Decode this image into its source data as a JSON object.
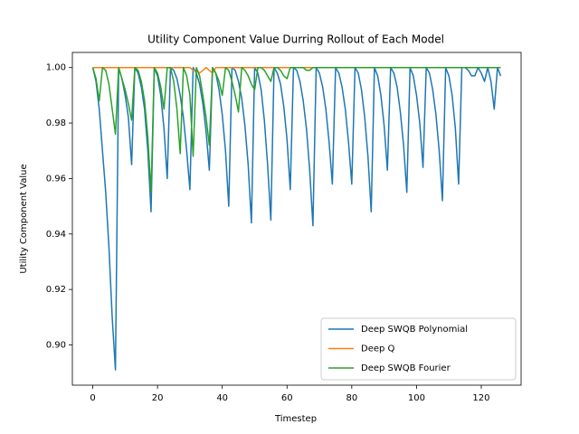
{
  "chart_data": {
    "type": "line",
    "title": "Utility Component Value Durring Rollout of Each Model",
    "xlabel": "Timestep",
    "ylabel": "Utility Component Value",
    "x": [
      0,
      1,
      2,
      3,
      4,
      5,
      6,
      7,
      8,
      9,
      10,
      11,
      12,
      13,
      14,
      15,
      16,
      17,
      18,
      19,
      20,
      21,
      22,
      23,
      24,
      25,
      26,
      27,
      28,
      29,
      30,
      31,
      32,
      33,
      34,
      35,
      36,
      37,
      38,
      39,
      40,
      41,
      42,
      43,
      44,
      45,
      46,
      47,
      48,
      49,
      50,
      51,
      52,
      53,
      54,
      55,
      56,
      57,
      58,
      59,
      60,
      61,
      62,
      63,
      64,
      65,
      66,
      67,
      68,
      69,
      70,
      71,
      72,
      73,
      74,
      75,
      76,
      77,
      78,
      79,
      80,
      81,
      82,
      83,
      84,
      85,
      86,
      87,
      88,
      89,
      90,
      91,
      92,
      93,
      94,
      95,
      96,
      97,
      98,
      99,
      100,
      101,
      102,
      103,
      104,
      105,
      106,
      107,
      108,
      109,
      110,
      111,
      112,
      113,
      114,
      115,
      116,
      117,
      118,
      119,
      120,
      121,
      122,
      123,
      124,
      125,
      126
    ],
    "series": [
      {
        "name": "Deep SWQB Polynomial",
        "color": "#1f77b4",
        "values": [
          1.0,
          0.995,
          0.985,
          0.97,
          0.955,
          0.935,
          0.91,
          0.891,
          1.0,
          0.996,
          0.99,
          0.982,
          0.965,
          1.0,
          0.998,
          0.993,
          0.985,
          0.97,
          0.948,
          1.0,
          0.997,
          0.99,
          0.978,
          0.96,
          1.0,
          0.999,
          0.996,
          0.99,
          0.982,
          0.97,
          0.956,
          1.0,
          0.998,
          0.994,
          0.987,
          0.977,
          0.963,
          1.0,
          0.998,
          0.992,
          0.983,
          0.97,
          0.95,
          1.0,
          0.999,
          0.995,
          0.989,
          0.979,
          0.965,
          0.944,
          1.0,
          0.998,
          0.992,
          0.981,
          0.965,
          0.945,
          1.0,
          0.998,
          0.994,
          0.986,
          0.974,
          0.956,
          1.0,
          0.999,
          0.995,
          0.988,
          0.978,
          0.963,
          0.943,
          1.0,
          0.998,
          0.993,
          0.985,
          0.973,
          0.958,
          1.0,
          0.998,
          0.993,
          0.985,
          0.973,
          0.958,
          1.0,
          0.998,
          0.992,
          0.982,
          0.968,
          0.948,
          1.0,
          0.997,
          0.99,
          0.979,
          0.963,
          1.0,
          0.998,
          0.993,
          0.984,
          0.972,
          0.955,
          1.0,
          0.997,
          0.99,
          0.98,
          0.964,
          1.0,
          0.998,
          0.992,
          0.983,
          0.97,
          0.952,
          1.0,
          0.997,
          0.99,
          0.978,
          0.958,
          1.0,
          1.0,
          0.999,
          0.997,
          0.997,
          1.0,
          0.998,
          0.995,
          1.0,
          0.995,
          0.985,
          1.0,
          0.997
        ]
      },
      {
        "name": "Deep Q",
        "color": "#ff7f0e",
        "values": [
          1.0,
          1.0,
          1.0,
          1.0,
          1.0,
          1.0,
          1.0,
          1.0,
          1.0,
          1.0,
          1.0,
          1.0,
          1.0,
          1.0,
          1.0,
          1.0,
          1.0,
          1.0,
          1.0,
          1.0,
          1.0,
          1.0,
          1.0,
          1.0,
          1.0,
          1.0,
          1.0,
          1.0,
          1.0,
          1.0,
          1.0,
          0.999,
          0.999,
          0.998,
          0.999,
          1.0,
          0.999,
          0.998,
          1.0,
          1.0,
          1.0,
          1.0,
          1.0,
          1.0,
          1.0,
          1.0,
          1.0,
          1.0,
          1.0,
          1.0,
          1.0,
          1.0,
          1.0,
          1.0,
          1.0,
          1.0,
          1.0,
          1.0,
          1.0,
          1.0,
          1.0,
          1.0,
          1.0,
          1.0,
          1.0,
          1.0,
          1.0,
          1.0,
          1.0,
          1.0,
          1.0,
          1.0,
          1.0,
          1.0,
          1.0,
          1.0,
          1.0,
          1.0,
          1.0,
          1.0,
          1.0,
          1.0,
          1.0,
          1.0,
          1.0,
          1.0,
          1.0,
          1.0,
          1.0,
          1.0,
          1.0,
          1.0,
          1.0,
          1.0,
          1.0,
          1.0,
          1.0,
          1.0,
          1.0,
          1.0,
          1.0,
          1.0,
          1.0,
          1.0,
          1.0,
          1.0,
          1.0,
          1.0,
          1.0,
          1.0,
          1.0,
          1.0,
          1.0,
          1.0,
          1.0,
          1.0,
          1.0,
          1.0,
          1.0,
          1.0,
          1.0,
          1.0,
          1.0,
          1.0,
          1.0,
          1.0,
          1.0
        ]
      },
      {
        "name": "Deep SWQB Fourier",
        "color": "#2ca02c",
        "values": [
          1.0,
          0.996,
          0.988,
          1.0,
          0.999,
          0.994,
          0.985,
          0.976,
          1.0,
          0.996,
          0.992,
          0.987,
          0.981,
          1.0,
          0.999,
          0.995,
          0.988,
          0.975,
          0.955,
          1.0,
          0.998,
          0.993,
          0.985,
          1.0,
          1.0,
          0.995,
          0.985,
          0.969,
          1.0,
          0.997,
          0.99,
          0.968,
          1.0,
          0.997,
          0.99,
          0.982,
          0.972,
          1.0,
          0.998,
          0.995,
          0.99,
          1.0,
          0.999,
          0.995,
          0.99,
          0.984,
          1.0,
          0.999,
          0.997,
          0.994,
          0.992,
          1.0,
          1.0,
          0.999,
          0.997,
          0.995,
          1.0,
          1.0,
          0.999,
          0.997,
          0.996,
          1.0,
          1.0,
          1.0,
          1.0,
          1.0,
          0.999,
          0.999,
          1.0,
          1.0,
          1.0,
          1.0,
          1.0,
          1.0,
          1.0,
          1.0,
          1.0,
          1.0,
          1.0,
          1.0,
          1.0,
          1.0,
          1.0,
          1.0,
          1.0,
          1.0,
          1.0,
          1.0,
          1.0,
          1.0,
          1.0,
          1.0,
          1.0,
          1.0,
          1.0,
          1.0,
          1.0,
          1.0,
          1.0,
          1.0,
          1.0,
          1.0,
          1.0,
          1.0,
          1.0,
          1.0,
          1.0,
          1.0,
          1.0,
          1.0,
          1.0,
          1.0,
          1.0,
          1.0,
          1.0,
          1.0,
          1.0,
          1.0,
          1.0,
          1.0,
          1.0,
          1.0,
          1.0,
          1.0,
          1.0,
          1.0,
          1.0
        ]
      }
    ],
    "xlim": [
      -6.3,
      132.3
    ],
    "xticks": [
      0,
      20,
      40,
      60,
      80,
      100,
      120
    ],
    "ylim": [
      0.8855,
      1.00545
    ],
    "yticks": [
      {
        "value": 0.9,
        "label": "0.90"
      },
      0.92,
      0.94,
      0.96,
      0.98,
      {
        "value": 1.0,
        "label": "1.00"
      }
    ],
    "legend": "lower right"
  }
}
